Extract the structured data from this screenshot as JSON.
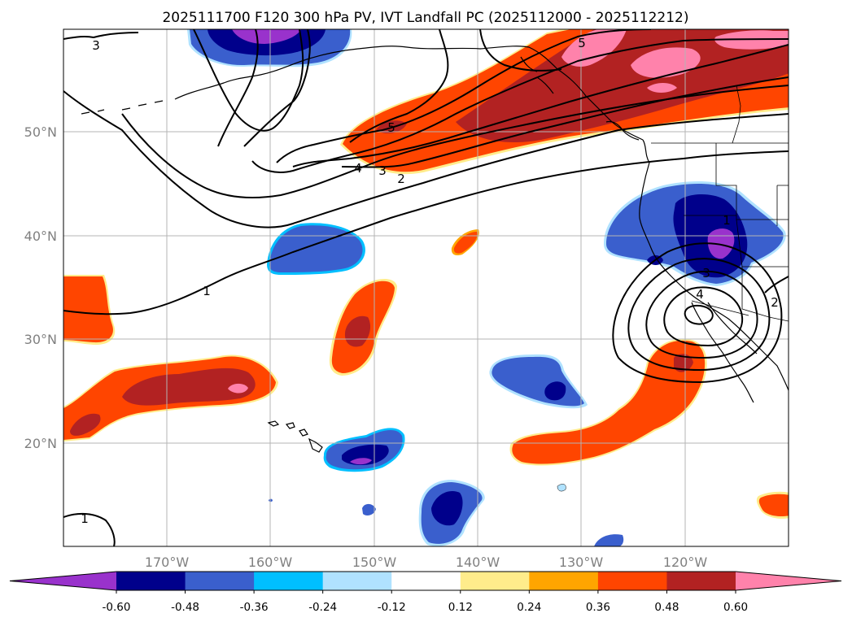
{
  "title": "2025111700 F120 300 hPa PV, IVT Landfall PC (2025112000 - 2025112212)",
  "map": {
    "lon_range": [
      -180,
      -110
    ],
    "lat_range": [
      10,
      60
    ],
    "lat_ticks": [
      "50°N",
      "40°N",
      "30°N",
      "20°N"
    ],
    "lon_ticks": [
      "170°W",
      "160°W",
      "150°W",
      "140°W",
      "130°W",
      "120°W"
    ],
    "gridlines": true,
    "pv_contour_labels": [
      "3",
      "5",
      "5",
      "4",
      "3",
      "2",
      "1",
      "1",
      "3",
      "4",
      "2",
      "1"
    ]
  },
  "colorbar": {
    "labels": [
      "-0.60",
      "-0.48",
      "-0.36",
      "-0.24",
      "-0.12",
      "0.12",
      "0.24",
      "0.36",
      "0.48",
      "0.60"
    ],
    "colors": [
      "#9932cc",
      "#00008b",
      "#3a5fcd",
      "#00bfff",
      "#b0e2ff",
      "#ffffff",
      "#ffec8b",
      "#ffa500",
      "#ff4500",
      "#b22222",
      "#ff82ab"
    ]
  }
}
